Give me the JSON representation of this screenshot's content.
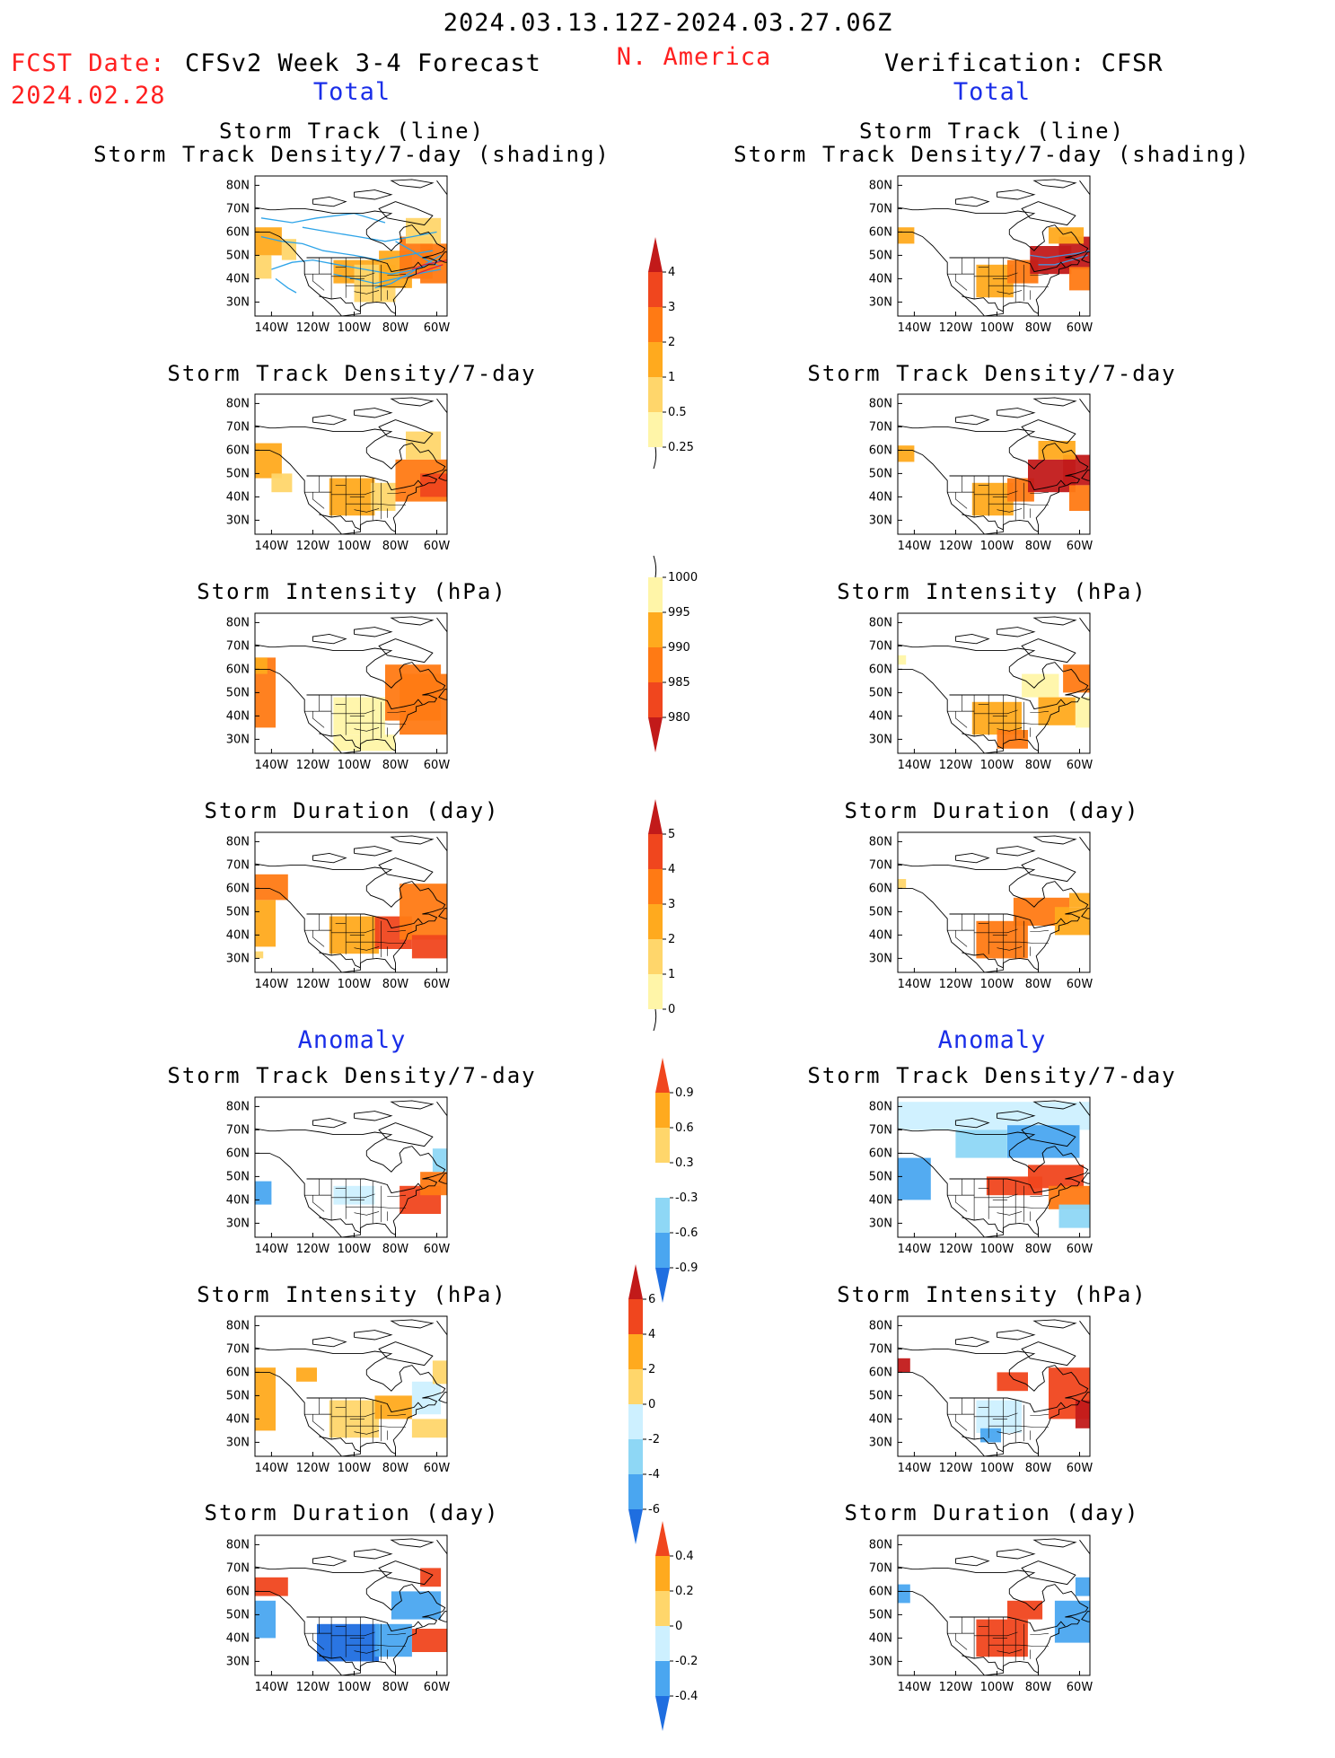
{
  "header": {
    "period": "2024.03.13.12Z-2024.03.27.06Z",
    "fcst_label": "FCST Date:",
    "fcst_date": "2024.02.28",
    "model": "CFSv2 Week 3-4 Forecast",
    "region": "N. America",
    "verification": "Verification: CFSR"
  },
  "sections": {
    "total": "Total",
    "anomaly": "Anomaly"
  },
  "titles": {
    "track_line": "Storm Track (line)",
    "track_density_shading": "Storm Track Density/7-day (shading)",
    "track_density": "Storm Track Density/7-day",
    "intensity": "Storm Intensity (hPa)",
    "duration": "Storm Duration (day)"
  },
  "axes": {
    "lat_labels": [
      "80N",
      "70N",
      "60N",
      "50N",
      "40N",
      "30N"
    ],
    "lon_labels": [
      "140W",
      "120W",
      "100W",
      "80W",
      "60W"
    ]
  },
  "colors": {
    "warm": [
      "#fff5a8",
      "#ffd66b",
      "#ffaa1e",
      "#ff7a14",
      "#f0461e",
      "#c21a1a"
    ],
    "cool": [
      "#cdf0ff",
      "#8ed7f5",
      "#4aa6f0",
      "#1f6ee0"
    ],
    "track_line_forecast": "#2ea4e8",
    "track_line_forecast_dark": "#e0203a",
    "track_line_verification": "#4a90d8",
    "header_red": "#ff2020",
    "header_blue": "#1a2ee8"
  },
  "colorbars": [
    {
      "id": "density",
      "labels": [
        "4",
        "3",
        "2",
        "1",
        "0.5",
        "0.25"
      ]
    },
    {
      "id": "intensity",
      "labels": [
        "1000",
        "995",
        "990",
        "985",
        "980"
      ]
    },
    {
      "id": "duration",
      "labels": [
        "5",
        "4",
        "3",
        "2",
        "1",
        "0"
      ]
    },
    {
      "id": "density_anom",
      "labels": [
        "0.9",
        "0.6",
        "0.3",
        "-0.3",
        "-0.6",
        "-0.9"
      ]
    },
    {
      "id": "intensity_anom",
      "labels": [
        "6",
        "4",
        "2",
        "0",
        "-2",
        "-4",
        "-6"
      ]
    },
    {
      "id": "duration_anom",
      "labels": [
        "0.4",
        "0.2",
        "0",
        "-0.2",
        "-0.4"
      ]
    }
  ],
  "chart_data": {
    "type": "heatmap",
    "grid_note": "coarse read of shaded regions; lon in degrees (negative = W), lat in degrees N; value = color-bar level index",
    "lon_range": [
      -148,
      -55
    ],
    "lat_range": [
      24,
      84
    ],
    "panels": [
      {
        "id": "fc_track",
        "kind": "warm",
        "cells": [
          [
            -148,
            -135,
            50,
            62,
            2
          ],
          [
            -135,
            -128,
            48,
            57,
            1
          ],
          [
            -110,
            -88,
            38,
            48,
            2
          ],
          [
            -100,
            -80,
            30,
            46,
            1
          ],
          [
            -88,
            -72,
            36,
            52,
            2
          ],
          [
            -78,
            -62,
            40,
            58,
            3
          ],
          [
            -68,
            -55,
            38,
            55,
            3
          ],
          [
            -75,
            -58,
            55,
            66,
            1
          ],
          [
            -148,
            -140,
            40,
            50,
            1
          ]
        ]
      },
      {
        "id": "vr_track",
        "kind": "warm",
        "cells": [
          [
            -148,
            -140,
            55,
            62,
            2
          ],
          [
            -110,
            -92,
            32,
            46,
            2
          ],
          [
            -95,
            -80,
            38,
            48,
            3
          ],
          [
            -84,
            -64,
            42,
            54,
            5
          ],
          [
            -70,
            -55,
            44,
            58,
            5
          ],
          [
            -65,
            -55,
            35,
            45,
            3
          ],
          [
            -75,
            -58,
            55,
            62,
            2
          ]
        ]
      },
      {
        "id": "fc_density",
        "kind": "warm",
        "cells": [
          [
            -148,
            -135,
            48,
            63,
            2
          ],
          [
            -140,
            -130,
            42,
            50,
            1
          ],
          [
            -112,
            -90,
            32,
            48,
            2
          ],
          [
            -92,
            -80,
            34,
            46,
            1
          ],
          [
            -80,
            -55,
            38,
            56,
            3
          ],
          [
            -68,
            -55,
            40,
            50,
            4
          ],
          [
            -75,
            -58,
            56,
            68,
            1
          ]
        ]
      },
      {
        "id": "vr_density",
        "kind": "warm",
        "cells": [
          [
            -148,
            -140,
            55,
            62,
            2
          ],
          [
            -112,
            -92,
            32,
            46,
            2
          ],
          [
            -95,
            -82,
            38,
            48,
            3
          ],
          [
            -85,
            -62,
            42,
            56,
            5
          ],
          [
            -68,
            -55,
            45,
            58,
            5
          ],
          [
            -65,
            -55,
            34,
            45,
            3
          ],
          [
            -80,
            -62,
            56,
            64,
            2
          ]
        ]
      },
      {
        "id": "fc_intensity",
        "kind": "warm",
        "cells": [
          [
            -148,
            -138,
            35,
            65,
            3
          ],
          [
            -148,
            -142,
            58,
            65,
            2
          ],
          [
            -110,
            -85,
            32,
            48,
            0
          ],
          [
            -85,
            -58,
            38,
            62,
            3
          ],
          [
            -78,
            -55,
            32,
            58,
            3
          ],
          [
            -110,
            -80,
            25,
            32,
            0
          ]
        ]
      },
      {
        "id": "vr_intensity",
        "kind": "warm",
        "cells": [
          [
            -148,
            -144,
            62,
            66,
            0
          ],
          [
            -88,
            -70,
            48,
            58,
            0
          ],
          [
            -112,
            -88,
            32,
            46,
            2
          ],
          [
            -100,
            -85,
            26,
            34,
            3
          ],
          [
            -80,
            -62,
            36,
            48,
            2
          ],
          [
            -68,
            -55,
            50,
            62,
            3
          ],
          [
            -62,
            -55,
            35,
            48,
            0
          ]
        ]
      },
      {
        "id": "fc_duration",
        "kind": "warm",
        "cells": [
          [
            -148,
            -132,
            55,
            66,
            3
          ],
          [
            -148,
            -138,
            35,
            55,
            2
          ],
          [
            -112,
            -88,
            32,
            48,
            2
          ],
          [
            -90,
            -72,
            34,
            48,
            4
          ],
          [
            -78,
            -55,
            38,
            62,
            3
          ],
          [
            -72,
            -55,
            30,
            40,
            4
          ],
          [
            -148,
            -144,
            30,
            33,
            1
          ]
        ]
      },
      {
        "id": "vr_duration",
        "kind": "warm",
        "cells": [
          [
            -148,
            -144,
            60,
            64,
            1
          ],
          [
            -110,
            -85,
            30,
            46,
            3
          ],
          [
            -92,
            -65,
            44,
            56,
            3
          ],
          [
            -72,
            -55,
            40,
            52,
            2
          ],
          [
            -65,
            -55,
            52,
            58,
            2
          ]
        ]
      },
      {
        "id": "fc_density_anom",
        "kind": "mixed",
        "cells": [
          [
            -148,
            -140,
            38,
            48,
            -3
          ],
          [
            -110,
            -90,
            38,
            46,
            -1
          ],
          [
            -78,
            -58,
            34,
            46,
            4
          ],
          [
            -68,
            -55,
            42,
            52,
            3
          ],
          [
            -62,
            -55,
            52,
            62,
            -2
          ]
        ]
      },
      {
        "id": "vr_density_anom",
        "kind": "mixed",
        "cells": [
          [
            -148,
            -55,
            70,
            82,
            -1
          ],
          [
            -148,
            -132,
            40,
            58,
            -3
          ],
          [
            -120,
            -95,
            58,
            70,
            -2
          ],
          [
            -95,
            -60,
            58,
            72,
            -3
          ],
          [
            -105,
            -78,
            42,
            50,
            4
          ],
          [
            -85,
            -58,
            45,
            55,
            4
          ],
          [
            -75,
            -55,
            36,
            46,
            3
          ],
          [
            -70,
            -55,
            28,
            38,
            -2
          ]
        ]
      },
      {
        "id": "fc_intensity_anom",
        "kind": "mixed",
        "cells": [
          [
            -148,
            -138,
            35,
            62,
            2
          ],
          [
            -128,
            -118,
            56,
            62,
            2
          ],
          [
            -112,
            -88,
            32,
            48,
            1
          ],
          [
            -90,
            -72,
            40,
            50,
            2
          ],
          [
            -72,
            -58,
            42,
            56,
            -1
          ],
          [
            -72,
            -55,
            32,
            40,
            1
          ],
          [
            -62,
            -55,
            55,
            65,
            1
          ]
        ]
      },
      {
        "id": "vr_intensity_anom",
        "kind": "mixed",
        "cells": [
          [
            -148,
            -142,
            60,
            66,
            5
          ],
          [
            -100,
            -85,
            52,
            60,
            4
          ],
          [
            -110,
            -88,
            34,
            48,
            -1
          ],
          [
            -108,
            -98,
            30,
            36,
            -3
          ],
          [
            -75,
            -55,
            40,
            62,
            4
          ],
          [
            -62,
            -55,
            36,
            48,
            5
          ]
        ]
      },
      {
        "id": "fc_duration_anom",
        "kind": "mixed",
        "cells": [
          [
            -148,
            -132,
            58,
            66,
            4
          ],
          [
            -148,
            -138,
            40,
            56,
            -3
          ],
          [
            -118,
            -88,
            30,
            46,
            -4
          ],
          [
            -90,
            -72,
            32,
            46,
            -3
          ],
          [
            -82,
            -58,
            48,
            60,
            -3
          ],
          [
            -72,
            -55,
            34,
            44,
            4
          ],
          [
            -68,
            -58,
            62,
            70,
            4
          ]
        ]
      },
      {
        "id": "vr_duration_anom",
        "kind": "mixed",
        "cells": [
          [
            -148,
            -142,
            55,
            63,
            -3
          ],
          [
            -110,
            -85,
            32,
            48,
            4
          ],
          [
            -95,
            -78,
            48,
            56,
            4
          ],
          [
            -72,
            -55,
            38,
            56,
            -3
          ],
          [
            -62,
            -55,
            58,
            66,
            -3
          ]
        ]
      }
    ]
  }
}
